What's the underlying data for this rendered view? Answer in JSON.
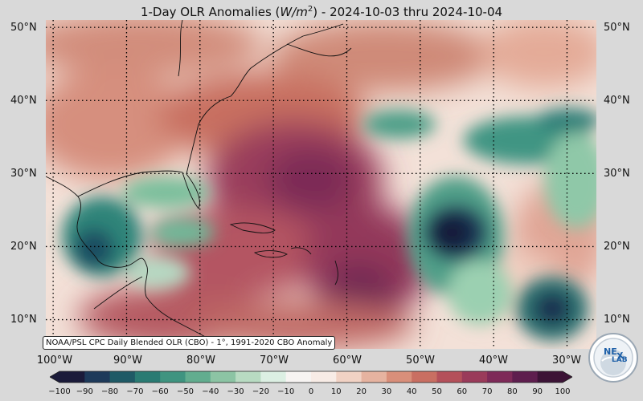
{
  "title": "1-Day OLR Anomalies (W/m²) - 2024-10-03 thru 2024-10-04",
  "title_parts": {
    "prefix": "1-Day OLR Anomalies (",
    "unit": "W/m",
    "unit_exp": "2",
    "suffix": ") - 2024-10-03 thru 2024-10-04"
  },
  "map": {
    "lat_labels": [
      "50°N",
      "40°N",
      "30°N",
      "20°N",
      "10°N"
    ],
    "lon_labels": [
      "100°W",
      "90°W",
      "80°W",
      "70°W",
      "60°W",
      "50°W",
      "40°W",
      "30°W"
    ],
    "lat_range": [
      6,
      51
    ],
    "lon_range": [
      -101,
      -26
    ],
    "gridlines": "dotted",
    "background_color": "#f3e1d8"
  },
  "source_note": "NOAA/PSL CPC Daily Blended OLR (CBO) - 1°, 1991-2020 CBO Anomaly",
  "colorbar": {
    "ticks": [
      "−100",
      "−90",
      "−80",
      "−70",
      "−60",
      "−50",
      "−40",
      "−30",
      "−20",
      "−10",
      "0",
      "10",
      "20",
      "30",
      "40",
      "50",
      "60",
      "70",
      "80",
      "90",
      "100"
    ],
    "colors": [
      "#1b1b3a",
      "#1e3a5a",
      "#1f5a66",
      "#2a7b73",
      "#3f9480",
      "#62ad8f",
      "#8cc4a4",
      "#b8dbc2",
      "#dcefe3",
      "#f7f4f2",
      "#f8ece6",
      "#f1d2c4",
      "#e6b3a0",
      "#d98f7a",
      "#c96f62",
      "#b4505a",
      "#9a3b5a",
      "#7e2a58",
      "#5e1e4e",
      "#3c1336"
    ]
  },
  "logo": {
    "text_top": "NE",
    "text_bottom": "LAB",
    "color_primary": "#1d5fa8",
    "color_ring": "#9aa7b4"
  }
}
